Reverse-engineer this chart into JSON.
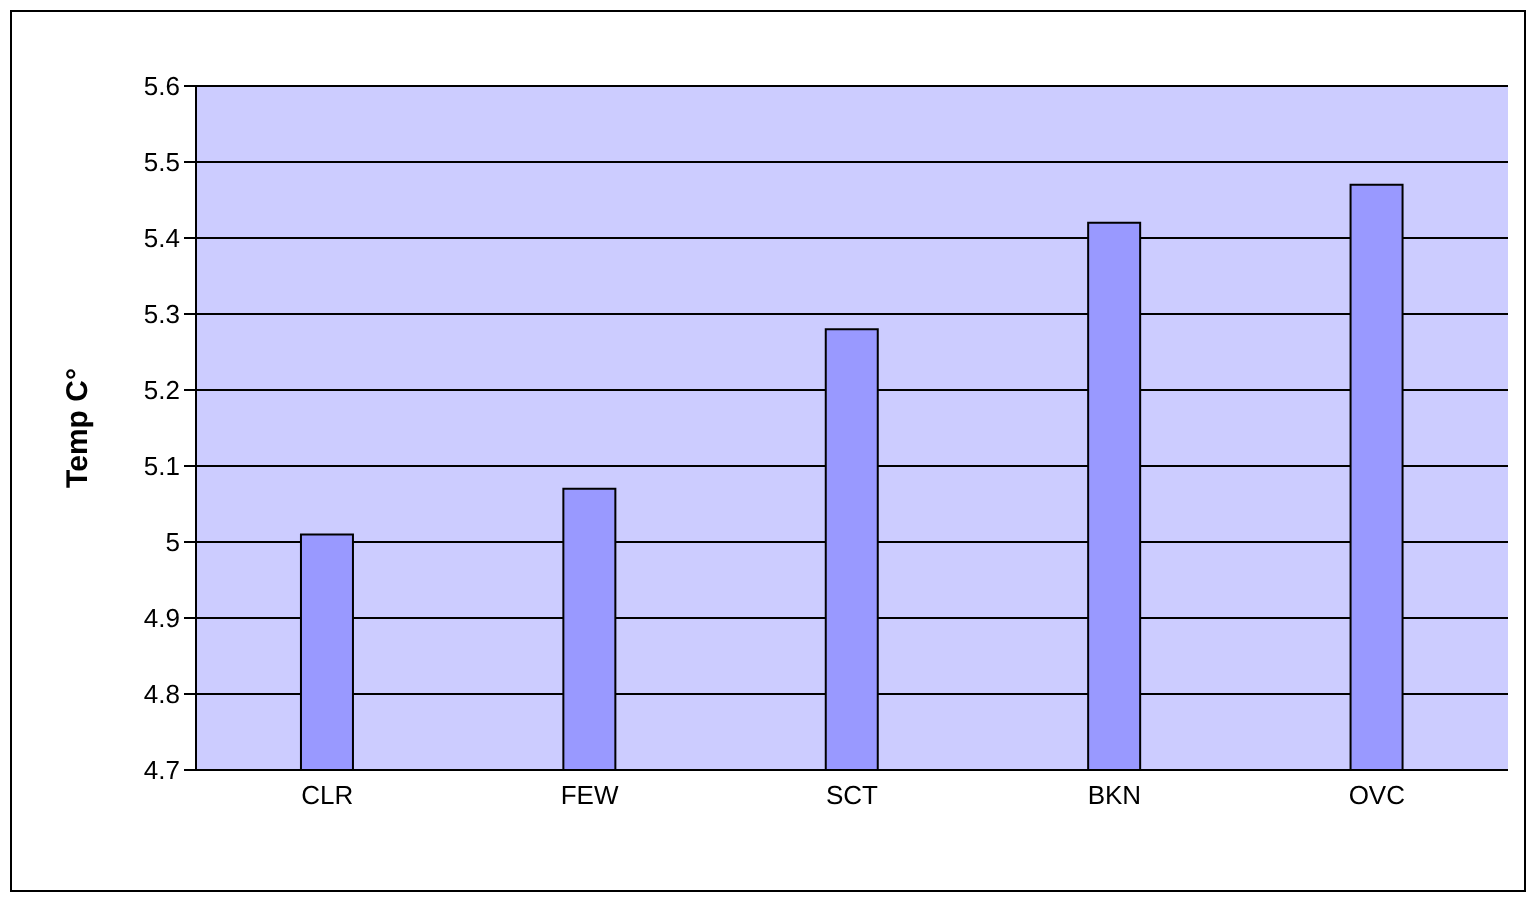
{
  "chart_data": {
    "type": "bar",
    "ylabel": "Temp C°",
    "categories": [
      "CLR",
      "FEW",
      "SCT",
      "BKN",
      "OVC"
    ],
    "values": [
      5.01,
      5.07,
      5.28,
      5.42,
      5.47
    ],
    "color": "#9999ff",
    "ylim": [
      4.7,
      5.6
    ],
    "yticks": [
      4.7,
      4.8,
      4.9,
      5,
      5.1,
      5.2,
      5.3,
      5.4,
      5.5,
      5.6
    ],
    "grid": "y"
  }
}
